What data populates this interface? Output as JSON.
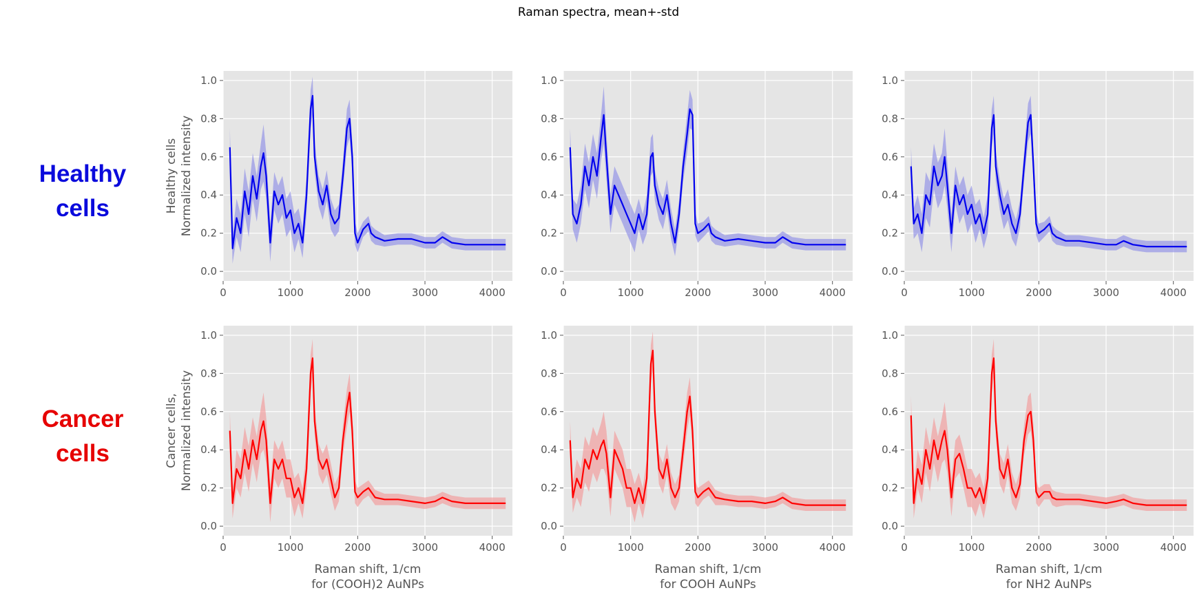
{
  "suptitle": "Raman spectra, mean+-std",
  "row_labels": [
    {
      "line1": "Healthy",
      "line2": "cells",
      "color": "#0a0adc"
    },
    {
      "line1": "Cancer",
      "line2": "cells",
      "color": "#e60000"
    }
  ],
  "ylabels": [
    [
      "Healthy cells",
      "Normalized intensity"
    ],
    [
      "Cancer cells,",
      "Normalized intensity"
    ]
  ],
  "xlabels": [
    [
      "Raman shift, 1/cm",
      "for (COOH)2 AuNPs"
    ],
    [
      "Raman shift, 1/cm",
      "for COOH AuNPs"
    ],
    [
      "Raman shift, 1/cm",
      "for NH2 AuNPs"
    ]
  ],
  "colors": {
    "healthy": "#0000ee",
    "healthy_band": "#8f8fe6",
    "cancer": "#ff0000",
    "cancer_band": "#f29a9a",
    "axes_bg": "#e5e5e5",
    "grid": "#ffffff",
    "tick": "#555555"
  },
  "chart_data": [
    {
      "type": "line",
      "panel": "healthy-(COOH)2",
      "xlim": [
        0,
        4300
      ],
      "ylim": [
        -0.05,
        1.05
      ],
      "xticks": [
        "0",
        "1000",
        "2000",
        "3000",
        "4000"
      ],
      "yticks": [
        "0.0",
        "0.2",
        "0.4",
        "0.6",
        "0.8",
        "1.0"
      ],
      "grid": true,
      "series": [
        {
          "color": "blue",
          "x": [
            100,
            140,
            200,
            260,
            320,
            380,
            440,
            500,
            560,
            600,
            640,
            700,
            760,
            820,
            880,
            940,
            1000,
            1060,
            1120,
            1180,
            1240,
            1300,
            1330,
            1360,
            1420,
            1480,
            1540,
            1600,
            1660,
            1720,
            1780,
            1840,
            1880,
            1920,
            1960,
            2000,
            2080,
            2160,
            2200,
            2260,
            2400,
            2600,
            2800,
            3000,
            3150,
            3260,
            3400,
            3600,
            4200
          ],
          "y": [
            0.65,
            0.12,
            0.28,
            0.2,
            0.42,
            0.3,
            0.5,
            0.38,
            0.55,
            0.62,
            0.5,
            0.15,
            0.42,
            0.35,
            0.4,
            0.28,
            0.32,
            0.2,
            0.25,
            0.15,
            0.4,
            0.85,
            0.92,
            0.6,
            0.42,
            0.35,
            0.45,
            0.3,
            0.25,
            0.28,
            0.5,
            0.75,
            0.8,
            0.6,
            0.2,
            0.15,
            0.22,
            0.25,
            0.2,
            0.18,
            0.16,
            0.17,
            0.17,
            0.15,
            0.15,
            0.18,
            0.15,
            0.14,
            0.14
          ],
          "std": [
            0.1,
            0.08,
            0.1,
            0.1,
            0.12,
            0.12,
            0.12,
            0.12,
            0.12,
            0.15,
            0.12,
            0.1,
            0.1,
            0.1,
            0.1,
            0.1,
            0.1,
            0.1,
            0.08,
            0.08,
            0.1,
            0.1,
            0.1,
            0.08,
            0.08,
            0.08,
            0.08,
            0.08,
            0.07,
            0.07,
            0.08,
            0.1,
            0.1,
            0.08,
            0.06,
            0.05,
            0.04,
            0.04,
            0.04,
            0.04,
            0.03,
            0.03,
            0.03,
            0.03,
            0.03,
            0.03,
            0.03,
            0.03,
            0.03
          ]
        }
      ]
    },
    {
      "type": "line",
      "panel": "healthy-COOH",
      "xlim": [
        0,
        4300
      ],
      "ylim": [
        -0.05,
        1.05
      ],
      "xticks": [
        "0",
        "1000",
        "2000",
        "3000",
        "4000"
      ],
      "yticks": [
        "0.0",
        "0.2",
        "0.4",
        "0.6",
        "0.8",
        "1.0"
      ],
      "grid": true,
      "series": [
        {
          "color": "blue",
          "x": [
            100,
            140,
            200,
            260,
            320,
            380,
            440,
            500,
            560,
            600,
            640,
            700,
            760,
            820,
            880,
            940,
            1000,
            1060,
            1120,
            1180,
            1240,
            1300,
            1330,
            1360,
            1420,
            1480,
            1540,
            1600,
            1660,
            1720,
            1780,
            1840,
            1880,
            1920,
            1960,
            2000,
            2080,
            2160,
            2200,
            2260,
            2400,
            2600,
            2800,
            3000,
            3150,
            3260,
            3400,
            3600,
            4200
          ],
          "y": [
            0.65,
            0.3,
            0.25,
            0.35,
            0.55,
            0.45,
            0.6,
            0.5,
            0.7,
            0.82,
            0.6,
            0.3,
            0.45,
            0.4,
            0.35,
            0.3,
            0.25,
            0.2,
            0.3,
            0.22,
            0.3,
            0.6,
            0.62,
            0.45,
            0.35,
            0.3,
            0.4,
            0.25,
            0.15,
            0.3,
            0.55,
            0.72,
            0.85,
            0.82,
            0.25,
            0.2,
            0.22,
            0.25,
            0.2,
            0.18,
            0.16,
            0.17,
            0.16,
            0.15,
            0.15,
            0.18,
            0.15,
            0.14,
            0.14
          ],
          "std": [
            0.1,
            0.08,
            0.1,
            0.1,
            0.12,
            0.12,
            0.12,
            0.12,
            0.12,
            0.15,
            0.12,
            0.1,
            0.1,
            0.1,
            0.1,
            0.1,
            0.1,
            0.1,
            0.08,
            0.08,
            0.1,
            0.1,
            0.1,
            0.08,
            0.08,
            0.08,
            0.08,
            0.08,
            0.07,
            0.07,
            0.08,
            0.1,
            0.1,
            0.08,
            0.06,
            0.05,
            0.04,
            0.04,
            0.04,
            0.04,
            0.03,
            0.03,
            0.03,
            0.03,
            0.03,
            0.03,
            0.03,
            0.03,
            0.03
          ]
        }
      ]
    },
    {
      "type": "line",
      "panel": "healthy-NH2",
      "xlim": [
        0,
        4300
      ],
      "ylim": [
        -0.05,
        1.05
      ],
      "xticks": [
        "0",
        "1000",
        "2000",
        "3000",
        "4000"
      ],
      "yticks": [
        "0.0",
        "0.2",
        "0.4",
        "0.6",
        "0.8",
        "1.0"
      ],
      "grid": true,
      "series": [
        {
          "color": "blue",
          "x": [
            100,
            140,
            200,
            260,
            320,
            380,
            440,
            500,
            560,
            600,
            640,
            700,
            760,
            820,
            880,
            940,
            1000,
            1060,
            1120,
            1180,
            1240,
            1300,
            1330,
            1360,
            1420,
            1480,
            1540,
            1600,
            1660,
            1720,
            1780,
            1840,
            1880,
            1920,
            1960,
            2000,
            2080,
            2160,
            2200,
            2260,
            2400,
            2600,
            2800,
            3000,
            3150,
            3260,
            3400,
            3600,
            4200
          ],
          "y": [
            0.55,
            0.25,
            0.3,
            0.2,
            0.4,
            0.35,
            0.55,
            0.45,
            0.5,
            0.6,
            0.45,
            0.2,
            0.45,
            0.35,
            0.4,
            0.3,
            0.35,
            0.25,
            0.3,
            0.2,
            0.3,
            0.75,
            0.82,
            0.55,
            0.4,
            0.3,
            0.35,
            0.25,
            0.2,
            0.3,
            0.55,
            0.78,
            0.82,
            0.55,
            0.25,
            0.2,
            0.22,
            0.25,
            0.2,
            0.18,
            0.16,
            0.16,
            0.15,
            0.14,
            0.14,
            0.16,
            0.14,
            0.13,
            0.13
          ],
          "std": [
            0.1,
            0.08,
            0.1,
            0.1,
            0.12,
            0.12,
            0.12,
            0.12,
            0.12,
            0.15,
            0.12,
            0.1,
            0.1,
            0.1,
            0.1,
            0.1,
            0.1,
            0.1,
            0.08,
            0.08,
            0.1,
            0.1,
            0.1,
            0.08,
            0.08,
            0.08,
            0.08,
            0.08,
            0.07,
            0.07,
            0.08,
            0.1,
            0.1,
            0.08,
            0.06,
            0.05,
            0.04,
            0.04,
            0.04,
            0.04,
            0.03,
            0.03,
            0.03,
            0.03,
            0.03,
            0.03,
            0.03,
            0.03,
            0.03
          ]
        }
      ]
    },
    {
      "type": "line",
      "panel": "cancer-(COOH)2",
      "xlim": [
        0,
        4300
      ],
      "ylim": [
        -0.05,
        1.05
      ],
      "xticks": [
        "0",
        "1000",
        "2000",
        "3000",
        "4000"
      ],
      "yticks": [
        "0.0",
        "0.2",
        "0.4",
        "0.6",
        "0.8",
        "1.0"
      ],
      "grid": true,
      "series": [
        {
          "color": "red",
          "x": [
            100,
            140,
            200,
            260,
            320,
            380,
            440,
            500,
            560,
            600,
            640,
            700,
            760,
            820,
            880,
            940,
            1000,
            1060,
            1120,
            1180,
            1240,
            1300,
            1330,
            1360,
            1420,
            1480,
            1540,
            1600,
            1660,
            1720,
            1780,
            1840,
            1880,
            1920,
            1960,
            2000,
            2080,
            2160,
            2200,
            2260,
            2400,
            2600,
            2800,
            3000,
            3150,
            3260,
            3400,
            3600,
            4200
          ],
          "y": [
            0.5,
            0.12,
            0.3,
            0.25,
            0.4,
            0.3,
            0.45,
            0.35,
            0.5,
            0.55,
            0.45,
            0.12,
            0.35,
            0.3,
            0.35,
            0.25,
            0.25,
            0.15,
            0.2,
            0.12,
            0.3,
            0.8,
            0.88,
            0.55,
            0.35,
            0.3,
            0.35,
            0.25,
            0.15,
            0.2,
            0.45,
            0.62,
            0.7,
            0.5,
            0.18,
            0.15,
            0.18,
            0.2,
            0.18,
            0.15,
            0.14,
            0.14,
            0.13,
            0.12,
            0.13,
            0.15,
            0.13,
            0.12,
            0.12
          ],
          "std": [
            0.1,
            0.08,
            0.1,
            0.1,
            0.12,
            0.12,
            0.12,
            0.12,
            0.12,
            0.15,
            0.12,
            0.1,
            0.1,
            0.1,
            0.1,
            0.1,
            0.1,
            0.1,
            0.08,
            0.08,
            0.1,
            0.1,
            0.1,
            0.08,
            0.08,
            0.08,
            0.08,
            0.08,
            0.07,
            0.07,
            0.08,
            0.1,
            0.1,
            0.08,
            0.06,
            0.05,
            0.04,
            0.04,
            0.04,
            0.04,
            0.03,
            0.03,
            0.03,
            0.03,
            0.03,
            0.03,
            0.03,
            0.03,
            0.03
          ]
        }
      ]
    },
    {
      "type": "line",
      "panel": "cancer-COOH",
      "xlim": [
        0,
        4300
      ],
      "ylim": [
        -0.05,
        1.05
      ],
      "xticks": [
        "0",
        "1000",
        "2000",
        "3000",
        "4000"
      ],
      "yticks": [
        "0.0",
        "0.2",
        "0.4",
        "0.6",
        "0.8",
        "1.0"
      ],
      "grid": true,
      "series": [
        {
          "color": "red",
          "x": [
            100,
            140,
            200,
            260,
            320,
            380,
            440,
            500,
            560,
            600,
            640,
            700,
            760,
            820,
            880,
            940,
            1000,
            1060,
            1120,
            1180,
            1240,
            1300,
            1330,
            1360,
            1420,
            1480,
            1540,
            1600,
            1660,
            1720,
            1780,
            1840,
            1880,
            1920,
            1960,
            2000,
            2080,
            2160,
            2200,
            2260,
            2400,
            2600,
            2800,
            3000,
            3150,
            3260,
            3400,
            3600,
            4200
          ],
          "y": [
            0.45,
            0.15,
            0.25,
            0.2,
            0.35,
            0.3,
            0.4,
            0.35,
            0.42,
            0.45,
            0.38,
            0.15,
            0.4,
            0.35,
            0.3,
            0.2,
            0.2,
            0.12,
            0.2,
            0.12,
            0.25,
            0.85,
            0.92,
            0.6,
            0.3,
            0.25,
            0.35,
            0.2,
            0.15,
            0.2,
            0.4,
            0.6,
            0.68,
            0.5,
            0.18,
            0.15,
            0.18,
            0.2,
            0.18,
            0.15,
            0.14,
            0.13,
            0.13,
            0.12,
            0.13,
            0.15,
            0.12,
            0.11,
            0.11
          ],
          "std": [
            0.1,
            0.08,
            0.1,
            0.1,
            0.12,
            0.12,
            0.12,
            0.12,
            0.12,
            0.15,
            0.12,
            0.1,
            0.1,
            0.1,
            0.1,
            0.1,
            0.1,
            0.1,
            0.08,
            0.08,
            0.1,
            0.1,
            0.1,
            0.08,
            0.08,
            0.08,
            0.08,
            0.08,
            0.07,
            0.07,
            0.08,
            0.1,
            0.1,
            0.08,
            0.06,
            0.05,
            0.04,
            0.04,
            0.04,
            0.04,
            0.03,
            0.03,
            0.03,
            0.03,
            0.03,
            0.03,
            0.03,
            0.03,
            0.03
          ]
        }
      ]
    },
    {
      "type": "line",
      "panel": "cancer-NH2",
      "xlim": [
        0,
        4300
      ],
      "ylim": [
        -0.05,
        1.05
      ],
      "xticks": [
        "0",
        "1000",
        "2000",
        "3000",
        "4000"
      ],
      "yticks": [
        "0.0",
        "0.2",
        "0.4",
        "0.6",
        "0.8",
        "1.0"
      ],
      "grid": true,
      "series": [
        {
          "color": "red",
          "x": [
            100,
            140,
            200,
            260,
            320,
            380,
            440,
            500,
            560,
            600,
            640,
            700,
            760,
            820,
            880,
            940,
            1000,
            1060,
            1120,
            1180,
            1240,
            1300,
            1330,
            1360,
            1420,
            1480,
            1540,
            1600,
            1660,
            1720,
            1780,
            1840,
            1880,
            1920,
            1960,
            2000,
            2080,
            2160,
            2200,
            2260,
            2400,
            2600,
            2800,
            3000,
            3150,
            3260,
            3400,
            3600,
            4200
          ],
          "y": [
            0.58,
            0.12,
            0.3,
            0.22,
            0.4,
            0.3,
            0.45,
            0.35,
            0.45,
            0.5,
            0.4,
            0.15,
            0.35,
            0.38,
            0.3,
            0.2,
            0.2,
            0.15,
            0.2,
            0.12,
            0.25,
            0.8,
            0.88,
            0.55,
            0.3,
            0.25,
            0.35,
            0.2,
            0.15,
            0.22,
            0.45,
            0.58,
            0.6,
            0.45,
            0.18,
            0.15,
            0.18,
            0.18,
            0.15,
            0.14,
            0.14,
            0.14,
            0.13,
            0.12,
            0.13,
            0.14,
            0.12,
            0.11,
            0.11
          ],
          "std": [
            0.1,
            0.08,
            0.1,
            0.1,
            0.12,
            0.12,
            0.12,
            0.12,
            0.12,
            0.15,
            0.12,
            0.1,
            0.1,
            0.1,
            0.1,
            0.1,
            0.1,
            0.1,
            0.08,
            0.08,
            0.1,
            0.1,
            0.1,
            0.08,
            0.08,
            0.08,
            0.08,
            0.08,
            0.07,
            0.07,
            0.08,
            0.1,
            0.1,
            0.08,
            0.06,
            0.05,
            0.04,
            0.04,
            0.04,
            0.04,
            0.03,
            0.03,
            0.03,
            0.03,
            0.03,
            0.03,
            0.03,
            0.03,
            0.03
          ]
        }
      ]
    }
  ]
}
